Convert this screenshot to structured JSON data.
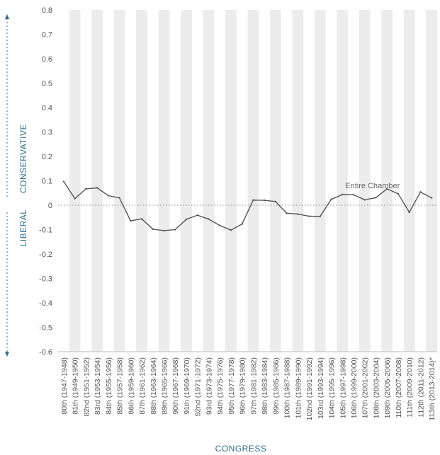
{
  "chart_data": {
    "type": "line",
    "ylim": [
      -0.6,
      0.8
    ],
    "yticks": [
      0.8,
      0.7,
      0.6,
      0.5,
      0.4,
      0.3,
      0.2,
      0.1,
      0,
      -0.1,
      -0.2,
      -0.3,
      -0.4,
      -0.5,
      -0.6
    ],
    "xlabel": "CONGRESS",
    "ylabel_top": "CONSERVATIVE",
    "ylabel_bottom": "LIBERAL",
    "categories": [
      "80th (1947-1948)",
      "81th (1949-1950)",
      "82nd (1951-1952)",
      "83rd (1953-1954)",
      "84th (1955-1956)",
      "85th (1957-1958)",
      "86th (1959-1960)",
      "87th (1961-1962)",
      "88th (1963-1964)",
      "89th (1965-1966)",
      "90th (1967-1968)",
      "91th (1969-1970)",
      "92nd (1971-1972)",
      "93rd (1973-1974)",
      "94th (1975-1976)",
      "95th (1977-1978)",
      "96th (1979-1980)",
      "97th (1981-1982)",
      "98th (1983-1984)",
      "99th (1985-1986)",
      "100th (1987-1988)",
      "101th (1989-1990)",
      "102nd (1991-1992)",
      "103rd (1993-1994)",
      "104th (1995-1996)",
      "105th (1997-1998)",
      "106th (1999-2000)",
      "107th (2001-2002)",
      "108th (2003-2004)",
      "109th (2005-2006)",
      "110th (2007-2008)",
      "111th (2009-2010)",
      "112th (2011-2012)",
      "113th (2013-2014)*"
    ],
    "series": [
      {
        "name": "Entire Chamber",
        "values": [
          0.097,
          0.027,
          0.067,
          0.071,
          0.039,
          0.03,
          -0.064,
          -0.056,
          -0.098,
          -0.104,
          -0.1,
          -0.058,
          -0.041,
          -0.057,
          -0.083,
          -0.102,
          -0.077,
          0.021,
          0.02,
          0.015,
          -0.033,
          -0.036,
          -0.045,
          -0.046,
          0.024,
          0.044,
          0.043,
          0.022,
          0.031,
          0.067,
          0.047,
          -0.029,
          0.054,
          0.03
        ]
      }
    ],
    "grid": true,
    "zero_line": "dotted"
  }
}
